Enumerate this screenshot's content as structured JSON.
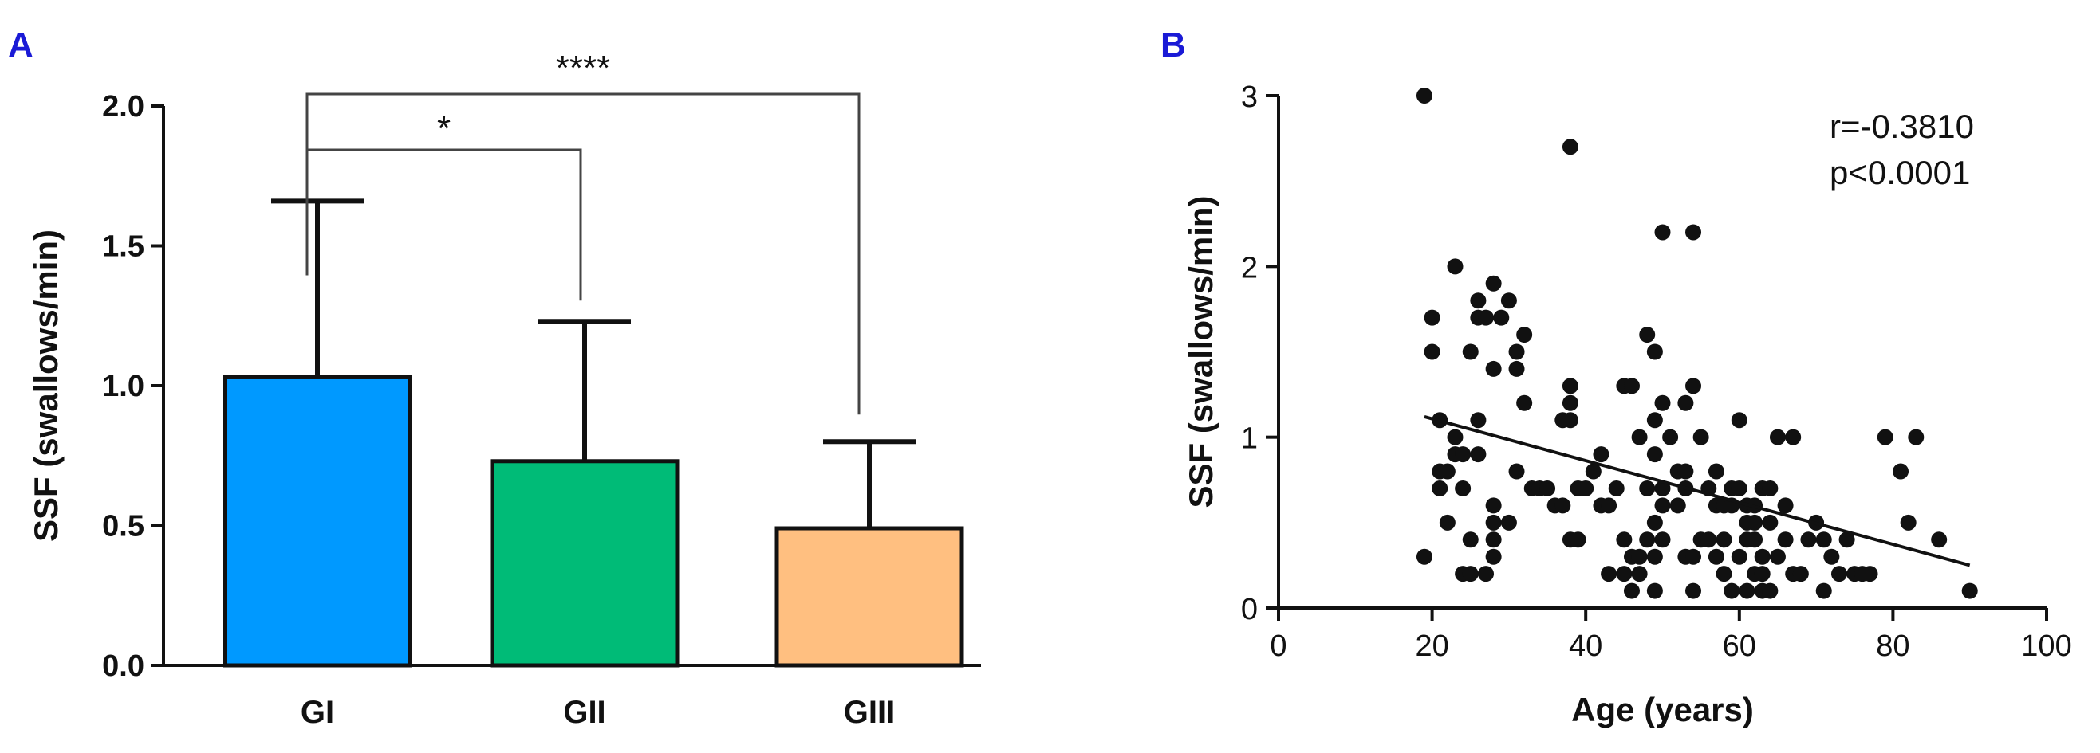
{
  "panels": {
    "a_label": "A",
    "b_label": "B"
  },
  "chart_data": [
    {
      "type": "bar",
      "title": "",
      "xlabel": "",
      "ylabel": "SSF (swallows/min)",
      "categories": [
        "GI",
        "GII",
        "GIII"
      ],
      "values": [
        1.03,
        0.73,
        0.49
      ],
      "errors": [
        0.63,
        0.5,
        0.31
      ],
      "colors": [
        "#0099ff",
        "#00bb77",
        "#ffbf80"
      ],
      "ylim": [
        0,
        2.0
      ],
      "yticks": [
        "0.0",
        "0.5",
        "1.0",
        "1.5",
        "2.0"
      ],
      "ytick_values": [
        0,
        0.5,
        1.0,
        1.5,
        2.0
      ],
      "grid": false,
      "significance": [
        {
          "from": "GI",
          "to": "GII",
          "label": "*"
        },
        {
          "from": "GI",
          "to": "GIII",
          "label": "****"
        }
      ]
    },
    {
      "type": "scatter",
      "title": "",
      "xlabel": "Age (years)",
      "ylabel": "SSF (swallows/min)",
      "xlim": [
        0,
        100
      ],
      "ylim": [
        0,
        3
      ],
      "xticks": [
        "0",
        "20",
        "40",
        "60",
        "80",
        "100"
      ],
      "xtick_values": [
        0,
        20,
        40,
        60,
        80,
        100
      ],
      "yticks": [
        "0",
        "1",
        "2",
        "3"
      ],
      "ytick_values": [
        0,
        1,
        2,
        3
      ],
      "grid": false,
      "annotation": [
        "r=-0.3810",
        "p<0.0001"
      ],
      "regression": {
        "x": [
          19,
          90
        ],
        "y": [
          1.12,
          0.25
        ]
      },
      "points": [
        [
          19,
          3.0
        ],
        [
          19,
          0.3
        ],
        [
          20,
          1.7
        ],
        [
          20,
          1.5
        ],
        [
          21,
          1.1
        ],
        [
          21,
          0.8
        ],
        [
          21,
          0.7
        ],
        [
          22,
          0.8
        ],
        [
          22,
          0.5
        ],
        [
          23,
          2.0
        ],
        [
          23,
          1.0
        ],
        [
          23,
          0.9
        ],
        [
          24,
          0.2
        ],
        [
          24,
          0.9
        ],
        [
          24,
          0.7
        ],
        [
          25,
          1.5
        ],
        [
          25,
          0.4
        ],
        [
          25,
          0.2
        ],
        [
          26,
          1.8
        ],
        [
          26,
          1.7
        ],
        [
          26,
          1.1
        ],
        [
          26,
          0.9
        ],
        [
          27,
          0.2
        ],
        [
          27,
          1.7
        ],
        [
          28,
          1.9
        ],
        [
          28,
          1.4
        ],
        [
          28,
          0.6
        ],
        [
          28,
          0.5
        ],
        [
          28,
          0.4
        ],
        [
          28,
          0.3
        ],
        [
          29,
          1.7
        ],
        [
          30,
          1.8
        ],
        [
          30,
          0.5
        ],
        [
          31,
          1.5
        ],
        [
          31,
          1.4
        ],
        [
          31,
          0.8
        ],
        [
          32,
          1.6
        ],
        [
          32,
          1.2
        ],
        [
          33,
          0.7
        ],
        [
          34,
          0.7
        ],
        [
          35,
          0.7
        ],
        [
          36,
          0.6
        ],
        [
          37,
          1.1
        ],
        [
          37,
          0.6
        ],
        [
          38,
          2.7
        ],
        [
          38,
          1.3
        ],
        [
          38,
          1.2
        ],
        [
          38,
          1.1
        ],
        [
          38,
          0.4
        ],
        [
          39,
          0.4
        ],
        [
          39,
          0.7
        ],
        [
          40,
          0.7
        ],
        [
          41,
          0.8
        ],
        [
          42,
          0.6
        ],
        [
          42,
          0.9
        ],
        [
          43,
          0.6
        ],
        [
          43,
          0.2
        ],
        [
          44,
          0.7
        ],
        [
          45,
          1.3
        ],
        [
          45,
          0.4
        ],
        [
          45,
          0.2
        ],
        [
          46,
          1.3
        ],
        [
          46,
          0.3
        ],
        [
          46,
          0.1
        ],
        [
          47,
          0.3
        ],
        [
          47,
          0.2
        ],
        [
          47,
          1.0
        ],
        [
          48,
          1.6
        ],
        [
          48,
          0.7
        ],
        [
          48,
          0.4
        ],
        [
          49,
          1.5
        ],
        [
          49,
          1.1
        ],
        [
          49,
          0.9
        ],
        [
          49,
          0.5
        ],
        [
          49,
          0.3
        ],
        [
          49,
          0.1
        ],
        [
          50,
          2.2
        ],
        [
          50,
          1.2
        ],
        [
          50,
          0.7
        ],
        [
          50,
          0.6
        ],
        [
          50,
          0.4
        ],
        [
          51,
          1.0
        ],
        [
          52,
          0.8
        ],
        [
          52,
          0.6
        ],
        [
          53,
          1.2
        ],
        [
          53,
          0.8
        ],
        [
          53,
          0.7
        ],
        [
          53,
          0.3
        ],
        [
          54,
          2.2
        ],
        [
          54,
          1.3
        ],
        [
          54,
          0.3
        ],
        [
          54,
          0.1
        ],
        [
          55,
          1.0
        ],
        [
          55,
          0.4
        ],
        [
          56,
          0.4
        ],
        [
          56,
          0.7
        ],
        [
          57,
          0.8
        ],
        [
          57,
          0.3
        ],
        [
          57,
          0.6
        ],
        [
          58,
          0.6
        ],
        [
          58,
          0.4
        ],
        [
          58,
          0.2
        ],
        [
          59,
          0.7
        ],
        [
          59,
          0.6
        ],
        [
          59,
          0.1
        ],
        [
          60,
          1.1
        ],
        [
          60,
          0.7
        ],
        [
          60,
          0.3
        ],
        [
          61,
          0.6
        ],
        [
          61,
          0.5
        ],
        [
          61,
          0.4
        ],
        [
          61,
          0.1
        ],
        [
          62,
          0.6
        ],
        [
          62,
          0.5
        ],
        [
          62,
          0.2
        ],
        [
          62,
          0.4
        ],
        [
          63,
          0.7
        ],
        [
          63,
          0.3
        ],
        [
          63,
          0.2
        ],
        [
          63,
          0.1
        ],
        [
          64,
          0.7
        ],
        [
          64,
          0.5
        ],
        [
          64,
          0.1
        ],
        [
          65,
          1.0
        ],
        [
          65,
          0.3
        ],
        [
          66,
          0.6
        ],
        [
          66,
          0.4
        ],
        [
          67,
          1.0
        ],
        [
          67,
          0.2
        ],
        [
          68,
          0.2
        ],
        [
          69,
          0.4
        ],
        [
          70,
          0.5
        ],
        [
          71,
          0.1
        ],
        [
          71,
          0.4
        ],
        [
          72,
          0.3
        ],
        [
          73,
          0.2
        ],
        [
          74,
          0.4
        ],
        [
          75,
          0.2
        ],
        [
          76,
          0.2
        ],
        [
          77,
          0.2
        ],
        [
          79,
          1.0
        ],
        [
          81,
          0.8
        ],
        [
          82,
          0.5
        ],
        [
          83,
          1.0
        ],
        [
          86,
          0.4
        ],
        [
          90,
          0.1
        ]
      ]
    }
  ]
}
